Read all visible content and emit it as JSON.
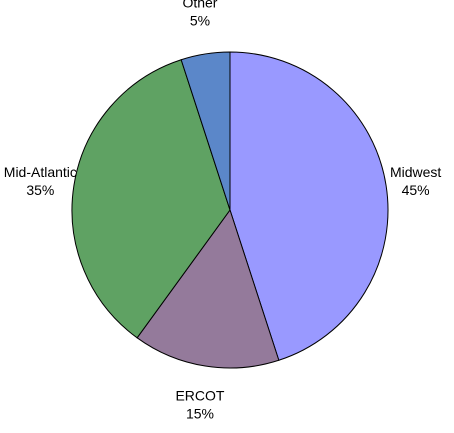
{
  "chart_data": {
    "type": "pie",
    "title": "",
    "legend": "none",
    "labels_shown": "outside",
    "categories": [
      "Midwest",
      "ERCOT",
      "Mid-Atlantic",
      "Other"
    ],
    "values": [
      45,
      15,
      35,
      5
    ],
    "value_labels": [
      "45%",
      "15%",
      "35%",
      "5%"
    ],
    "colors": [
      "#9999ff",
      "#947a9b",
      "#5fa263",
      "#5b87c9"
    ],
    "start_angle_deg": 0,
    "direction": "clockwise",
    "outline_color": "#000000"
  }
}
